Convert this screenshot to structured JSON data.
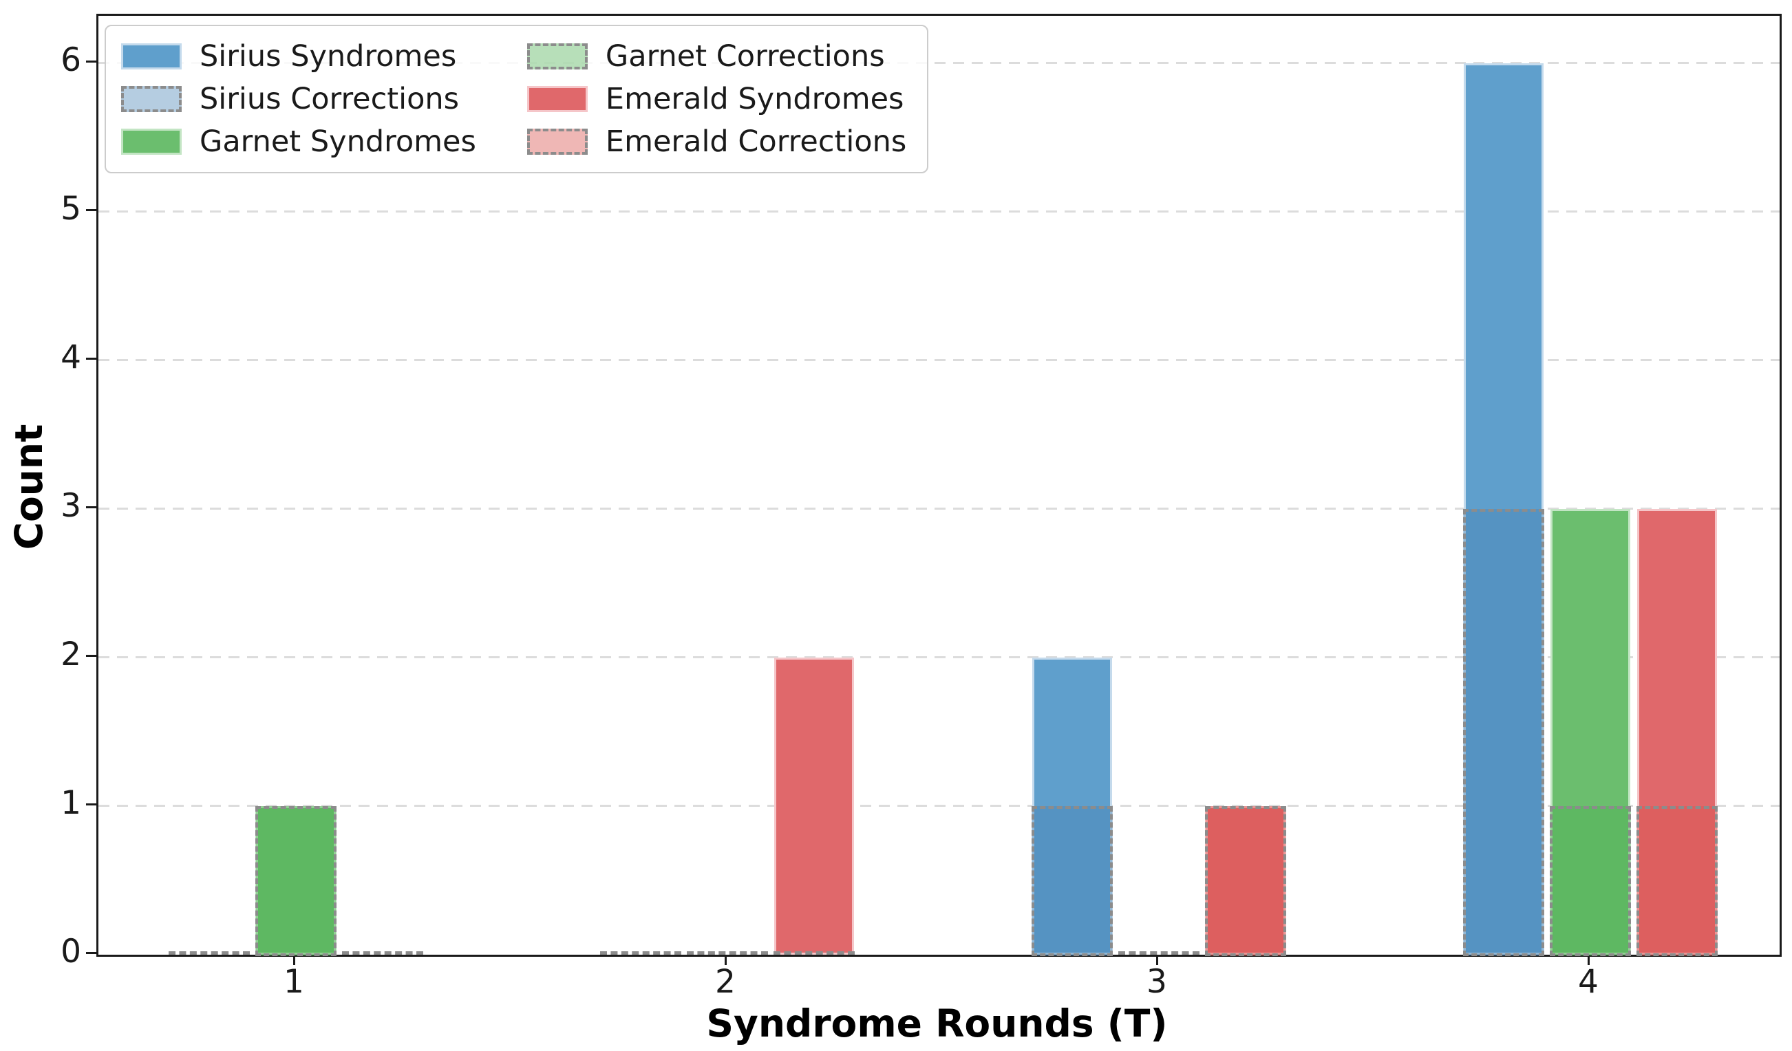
{
  "figure": {
    "background": "#ffffff",
    "spine_color": "#1a1a1a",
    "gridline_color": "#dcdcdc"
  },
  "chart_data": {
    "type": "bar",
    "title": "",
    "xlabel": "Syndrome Rounds (T)",
    "ylabel": "Count",
    "categories": [
      "1",
      "2",
      "3",
      "4"
    ],
    "yticks": [
      0,
      1,
      2,
      3,
      4,
      5,
      6
    ],
    "yticklabels": [
      "0",
      "1",
      "2",
      "3",
      "4",
      "5",
      "6"
    ],
    "ylim": [
      0,
      6.32
    ],
    "grid": "horizontal-dashed",
    "legend_position": "upper-left",
    "legend_columns": 2,
    "bar_style_note": "Syndromes are solid bars; Corrections are semi-transparent bars with gray dashed outlines overlaid at the same x position; zero-value corrections render as flat dashed stubs on the baseline",
    "series": [
      {
        "name": "Sirius Syndromes",
        "style": "solid",
        "group": "sirius",
        "offset": -1,
        "values": [
          0,
          0,
          2,
          6
        ]
      },
      {
        "name": "Sirius Corrections",
        "style": "dashed",
        "group": "sirius",
        "offset": -1,
        "values": [
          0,
          0,
          1,
          3
        ]
      },
      {
        "name": "Garnet Syndromes",
        "style": "solid",
        "group": "garnet",
        "offset": 0,
        "values": [
          1,
          0,
          0,
          3
        ]
      },
      {
        "name": "Garnet Corrections",
        "style": "dashed",
        "group": "garnet",
        "offset": 0,
        "values": [
          1,
          0,
          0,
          1
        ]
      },
      {
        "name": "Emerald Syndromes",
        "style": "solid",
        "group": "emerald",
        "offset": 1,
        "values": [
          0,
          2,
          1,
          3
        ]
      },
      {
        "name": "Emerald Corrections",
        "style": "dashed",
        "group": "emerald",
        "offset": 1,
        "values": [
          0,
          0,
          1,
          1
        ]
      }
    ],
    "colors": {
      "sirius": {
        "fill": "#5f9fcc",
        "edge": "#c4daec",
        "corr": "rgba(70,130,180,0.40)"
      },
      "garnet": {
        "fill": "#6bbe6e",
        "edge": "#c3e5c4",
        "corr": "rgba(76,175,80,0.40)"
      },
      "emerald": {
        "fill": "#e0686b",
        "edge": "#f5c6c9",
        "corr": "rgba(217,83,79,0.42)"
      },
      "dash_border": "#8c8c8c"
    }
  }
}
